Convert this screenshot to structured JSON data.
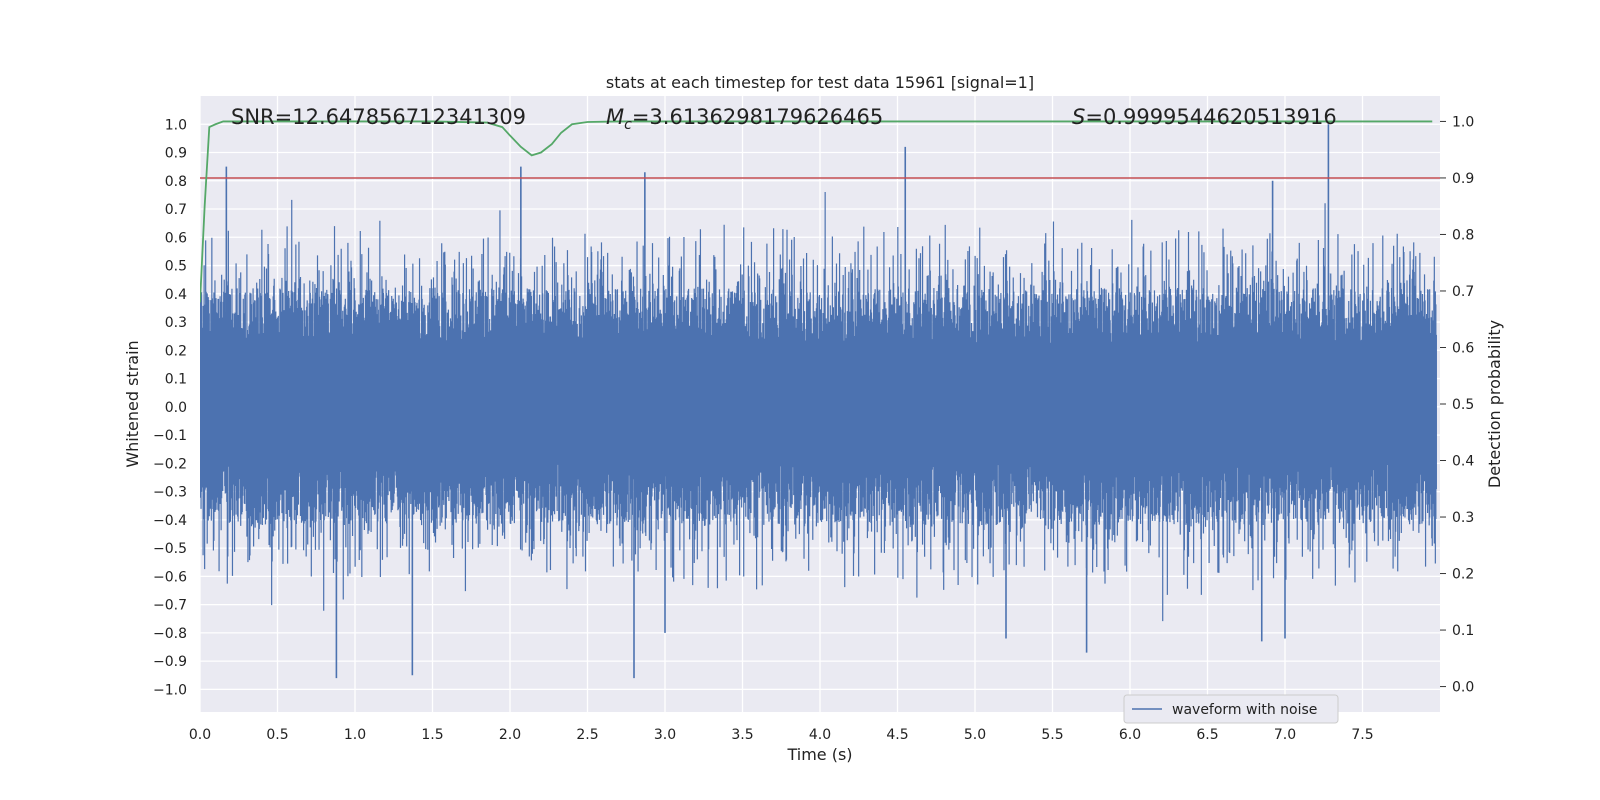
{
  "chart_data": {
    "type": "line",
    "title": "stats at each timestep for test data 15961 [signal=1]",
    "xlabel": "Time (s)",
    "ylabel_left": "Whitened strain",
    "ylabel_right": "Detection probability",
    "xlim": [
      0.0,
      8.0
    ],
    "ylim_left": [
      -1.08,
      1.1
    ],
    "ylim_right": [
      -0.045,
      1.045
    ],
    "x_ticks": [
      "0.0",
      "0.5",
      "1.0",
      "1.5",
      "2.0",
      "2.5",
      "3.0",
      "3.5",
      "4.0",
      "4.5",
      "5.0",
      "5.5",
      "6.0",
      "6.5",
      "7.0",
      "7.5"
    ],
    "y_ticks_left": [
      "1.0",
      "0.9",
      "0.8",
      "0.7",
      "0.6",
      "0.5",
      "0.4",
      "0.3",
      "0.2",
      "0.1",
      "0.0",
      "-0.1",
      "-0.2",
      "-0.3",
      "-0.4",
      "-0.5",
      "-0.6",
      "-0.7",
      "-0.8",
      "-0.9",
      "-1.0"
    ],
    "y_ticks_right": [
      "1.0",
      "0.9",
      "0.8",
      "0.7",
      "0.6",
      "0.5",
      "0.4",
      "0.3",
      "0.2",
      "0.1",
      "0.0"
    ],
    "grid": true,
    "threshold": {
      "value": 0.9,
      "axis": "right",
      "color": "#c44e52"
    },
    "annotations": [
      {
        "prefix": "SNR=",
        "italic": "",
        "sub": "",
        "value": "12.647856712341309"
      },
      {
        "prefix": "",
        "italic": "M",
        "sub": "c",
        "value": "=3.6136298179626465"
      },
      {
        "prefix": "",
        "italic": "S",
        "sub": "",
        "value": "=0.9999544620513916"
      }
    ],
    "series": [
      {
        "name": "waveform with noise",
        "axis": "left",
        "color": "#4c72b0",
        "envelope": "dense noise, amplitude about ±0.2 to ±0.6 everywhere",
        "peaks": [
          {
            "x": 0.17,
            "y": 0.85
          },
          {
            "x": 2.07,
            "y": 0.85
          },
          {
            "x": 2.87,
            "y": 0.83
          },
          {
            "x": 4.55,
            "y": 0.92
          },
          {
            "x": 6.92,
            "y": 0.8
          },
          {
            "x": 7.28,
            "y": 1.0
          },
          {
            "x": 0.88,
            "y": -0.96
          },
          {
            "x": 1.37,
            "y": -0.95
          },
          {
            "x": 2.8,
            "y": -0.96
          },
          {
            "x": 5.72,
            "y": -0.87
          },
          {
            "x": 6.85,
            "y": -0.83
          },
          {
            "x": 7.0,
            "y": -0.82
          },
          {
            "x": 3.0,
            "y": -0.8
          },
          {
            "x": 5.2,
            "y": -0.82
          }
        ]
      },
      {
        "name": "detection probability",
        "axis": "right",
        "color": "#55a868",
        "x": [
          0.0,
          0.03,
          0.06,
          0.1,
          0.15,
          0.5,
          1.0,
          1.5,
          1.85,
          1.95,
          2.0,
          2.07,
          2.14,
          2.2,
          2.27,
          2.33,
          2.4,
          2.5,
          2.7,
          3.0,
          4.0,
          5.0,
          6.0,
          7.0,
          7.95
        ],
        "y": [
          0.68,
          0.85,
          0.99,
          0.995,
          1.0,
          1.0,
          1.0,
          1.0,
          0.998,
          0.99,
          0.975,
          0.955,
          0.94,
          0.945,
          0.96,
          0.98,
          0.995,
          0.999,
          1.0,
          1.0,
          1.0,
          1.0,
          1.0,
          1.0,
          1.0
        ]
      }
    ],
    "legend": {
      "label": "waveform with noise",
      "placement": "lower-right"
    }
  }
}
